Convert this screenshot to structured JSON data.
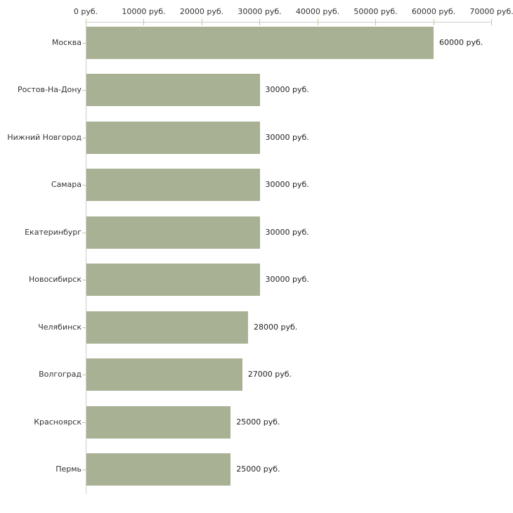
{
  "chart_data": {
    "type": "bar",
    "orientation": "horizontal",
    "title": "",
    "xlabel": "",
    "ylabel": "",
    "xlim": [
      0,
      70000
    ],
    "grid": false,
    "legend": false,
    "unit": "руб.",
    "categories": [
      "Москва",
      "Ростов-На-Дону",
      "Нижний Новгород",
      "Самара",
      "Екатеринбург",
      "Новосибирск",
      "Челябинск",
      "Волгоград",
      "Красноярск",
      "Пермь"
    ],
    "values": [
      60000,
      30000,
      30000,
      30000,
      30000,
      30000,
      28000,
      27000,
      25000,
      25000
    ],
    "value_labels": [
      "60000 руб.",
      "30000 руб.",
      "30000 руб.",
      "30000 руб.",
      "30000 руб.",
      "30000 руб.",
      "28000 руб.",
      "27000 руб.",
      "25000 руб.",
      "25000 руб."
    ],
    "x_tick_values": [
      0,
      10000,
      20000,
      30000,
      40000,
      50000,
      60000,
      70000
    ],
    "x_tick_labels": [
      "0 руб.",
      "10000 руб.",
      "20000 руб.",
      "30000 руб.",
      "40000 руб.",
      "50000 руб.",
      "60000 руб.",
      "70000 руб."
    ],
    "colors": {
      "bar": "#a9b195",
      "axis_line": "#cccccc",
      "tick_mark": "#c6c69a",
      "text": "#333333",
      "background": "#ffffff"
    }
  }
}
